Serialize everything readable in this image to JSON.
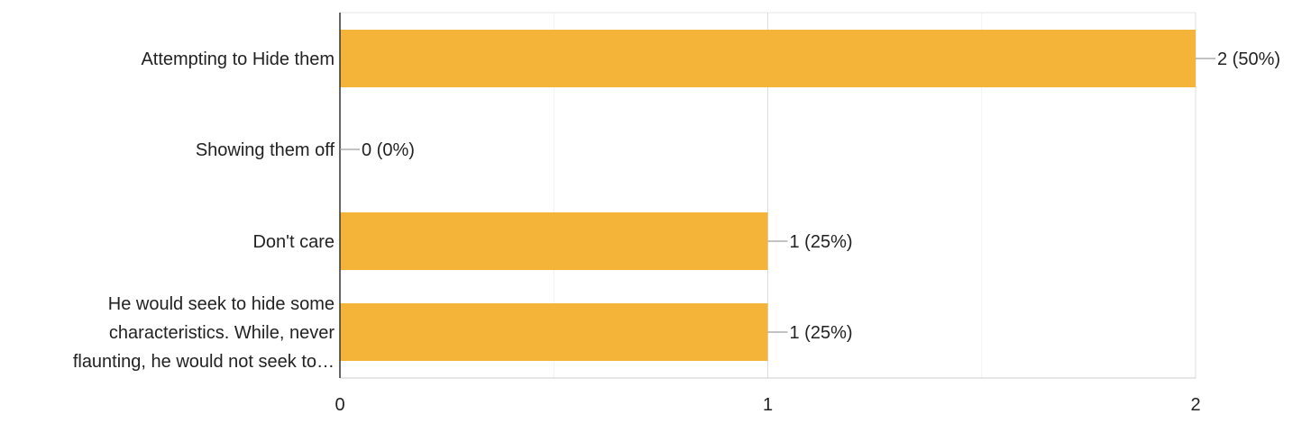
{
  "chart_data": {
    "type": "bar",
    "orientation": "horizontal",
    "categories": [
      [
        "Attempting to Hide them"
      ],
      [
        "Showing them off"
      ],
      [
        "Don't care"
      ],
      [
        "He would seek to hide some",
        "characteristics. While, never",
        "flaunting, he would not seek to…"
      ]
    ],
    "values": [
      2,
      0,
      1,
      1
    ],
    "value_labels": [
      "2 (50%)",
      "0 (0%)",
      "1 (25%)",
      "1 (25%)"
    ],
    "xlim": [
      0,
      2
    ],
    "xticks": [
      0,
      1,
      2
    ],
    "xtick_labels": [
      "0",
      "1",
      "2"
    ],
    "grid": true,
    "legend": "none",
    "bar_color": "#F4B43A",
    "title": "",
    "xlabel": "",
    "ylabel": ""
  }
}
